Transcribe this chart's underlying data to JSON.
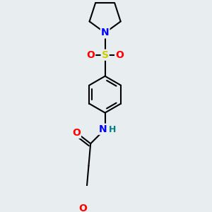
{
  "background_color": "#e8edf0",
  "bond_color": "#000000",
  "bond_width": 1.5,
  "atom_colors": {
    "O": "#ff0000",
    "N": "#0000ff",
    "S": "#cccc00",
    "H": "#008080",
    "C": "#000000"
  },
  "font_size": 9,
  "fig_width": 3.0,
  "fig_height": 3.0,
  "xlim": [
    0.25,
    0.8
  ],
  "ylim": [
    0.02,
    0.98
  ]
}
